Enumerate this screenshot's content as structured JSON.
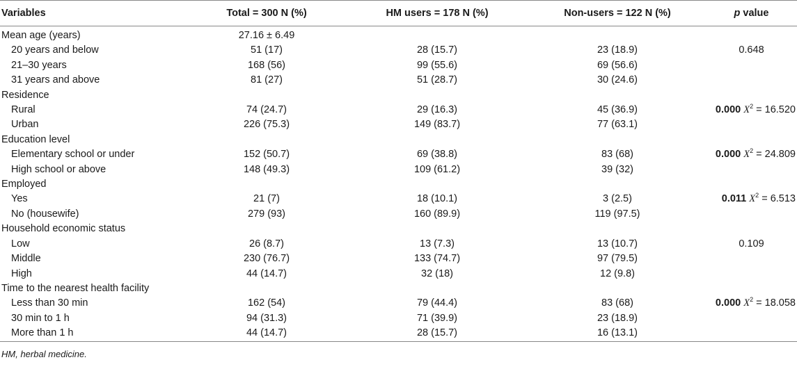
{
  "headers": {
    "variables": "Variables",
    "total": "Total = 300 N (%)",
    "hm_users": "HM users = 178 N (%)",
    "non_users": "Non-users = 122 N (%)",
    "p_letter": "p",
    "p_word": " value"
  },
  "rows": [
    {
      "label": "Mean age (years)",
      "total": "27.16 ± 6.49",
      "hm": "",
      "non": "",
      "p": "",
      "bold_p": "",
      "chi": ""
    },
    {
      "label": "20 years and below",
      "total": "51 (17)",
      "hm": "28 (15.7)",
      "non": "23 (18.9)",
      "p": "0.648",
      "bold_p": "",
      "chi": ""
    },
    {
      "label": "21–30 years",
      "total": "168 (56)",
      "hm": "99 (55.6)",
      "non": "69 (56.6)",
      "p": "",
      "bold_p": "",
      "chi": ""
    },
    {
      "label": "31 years and above",
      "total": "81 (27)",
      "hm": "51 (28.7)",
      "non": "30 (24.6)",
      "p": "",
      "bold_p": "",
      "chi": ""
    },
    {
      "label": "Residence",
      "total": "",
      "hm": "",
      "non": "",
      "p": "",
      "bold_p": "",
      "chi": ""
    },
    {
      "label": "Rural",
      "total": "74 (24.7)",
      "hm": "29 (16.3)",
      "non": "45 (36.9)",
      "p": "",
      "bold_p": "0.000",
      "chi": "16.520"
    },
    {
      "label": "Urban",
      "total": "226 (75.3)",
      "hm": "149 (83.7)",
      "non": "77 (63.1)",
      "p": "",
      "bold_p": "",
      "chi": ""
    },
    {
      "label": "Education level",
      "total": "",
      "hm": "",
      "non": "",
      "p": "",
      "bold_p": "",
      "chi": ""
    },
    {
      "label": "Elementary school or under",
      "total": "152 (50.7)",
      "hm": "69 (38.8)",
      "non": "83 (68)",
      "p": "",
      "bold_p": "0.000",
      "chi": "24.809"
    },
    {
      "label": "High school or above",
      "total": "148 (49.3)",
      "hm": "109 (61.2)",
      "non": "39 (32)",
      "p": "",
      "bold_p": "",
      "chi": ""
    },
    {
      "label": "Employed",
      "total": "",
      "hm": "",
      "non": "",
      "p": "",
      "bold_p": "",
      "chi": ""
    },
    {
      "label": "Yes",
      "total": "21 (7)",
      "hm": "18 (10.1)",
      "non": "3 (2.5)",
      "p": "",
      "bold_p": "0.011",
      "chi": "6.513"
    },
    {
      "label": "No (housewife)",
      "total": "279 (93)",
      "hm": "160 (89.9)",
      "non": "119 (97.5)",
      "p": "",
      "bold_p": "",
      "chi": ""
    },
    {
      "label": "Household economic status",
      "total": "",
      "hm": "",
      "non": "",
      "p": "",
      "bold_p": "",
      "chi": ""
    },
    {
      "label": "Low",
      "total": "26 (8.7)",
      "hm": "13 (7.3)",
      "non": "13 (10.7)",
      "p": "0.109",
      "bold_p": "",
      "chi": ""
    },
    {
      "label": "Middle",
      "total": "230 (76.7)",
      "hm": "133 (74.7)",
      "non": "97 (79.5)",
      "p": "",
      "bold_p": "",
      "chi": ""
    },
    {
      "label": "High",
      "total": "44 (14.7)",
      "hm": "32 (18)",
      "non": "12 (9.8)",
      "p": "",
      "bold_p": "",
      "chi": ""
    },
    {
      "label": "Time to the nearest health facility",
      "total": "",
      "hm": "",
      "non": "",
      "p": "",
      "bold_p": "",
      "chi": ""
    },
    {
      "label": "Less than 30 min",
      "total": "162 (54)",
      "hm": "79 (44.4)",
      "non": "83 (68)",
      "p": "",
      "bold_p": "0.000",
      "chi": "18.058"
    },
    {
      "label": "30 min to 1 h",
      "total": "94 (31.3)",
      "hm": "71 (39.9)",
      "non": "23 (18.9)",
      "p": "",
      "bold_p": "",
      "chi": ""
    },
    {
      "label": "More than 1 h",
      "total": "44 (14.7)",
      "hm": "28 (15.7)",
      "non": "16 (13.1)",
      "p": "",
      "bold_p": "",
      "chi": ""
    }
  ],
  "chi_symbol": "X",
  "chi_sup": "2",
  "chi_eq": " = ",
  "footnote": "HM, herbal medicine."
}
